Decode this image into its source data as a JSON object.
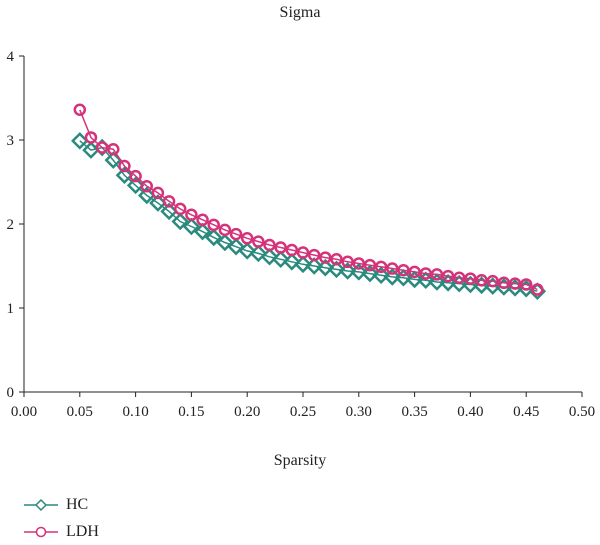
{
  "chart_data": {
    "type": "line",
    "title": "Sigma",
    "xlabel": "Sparsity",
    "ylabel": "",
    "xlim": [
      0,
      0.5
    ],
    "ylim": [
      0,
      4
    ],
    "x_ticks": [
      "0.00",
      "0.05",
      "0.10",
      "0.15",
      "0.20",
      "0.25",
      "0.30",
      "0.35",
      "0.40",
      "0.45",
      "0.50"
    ],
    "y_ticks": [
      "0",
      "1",
      "2",
      "3",
      "4"
    ],
    "legend_position": "bottom-left",
    "series": [
      {
        "name": "HC",
        "color": "#2a8a7e",
        "marker": "diamond",
        "x": [
          0.05,
          0.06,
          0.07,
          0.08,
          0.09,
          0.1,
          0.11,
          0.12,
          0.13,
          0.14,
          0.15,
          0.16,
          0.17,
          0.18,
          0.19,
          0.2,
          0.21,
          0.22,
          0.23,
          0.24,
          0.25,
          0.26,
          0.27,
          0.28,
          0.29,
          0.3,
          0.31,
          0.32,
          0.33,
          0.34,
          0.35,
          0.36,
          0.37,
          0.38,
          0.39,
          0.4,
          0.41,
          0.42,
          0.43,
          0.44,
          0.45,
          0.46
        ],
        "y": [
          2.99,
          2.88,
          2.91,
          2.76,
          2.58,
          2.46,
          2.34,
          2.25,
          2.15,
          2.03,
          1.97,
          1.91,
          1.84,
          1.78,
          1.73,
          1.68,
          1.65,
          1.61,
          1.58,
          1.55,
          1.52,
          1.5,
          1.48,
          1.46,
          1.44,
          1.43,
          1.41,
          1.39,
          1.37,
          1.36,
          1.34,
          1.33,
          1.31,
          1.3,
          1.29,
          1.28,
          1.27,
          1.26,
          1.25,
          1.24,
          1.23,
          1.2
        ]
      },
      {
        "name": "LDH",
        "color": "#d6327a",
        "marker": "circle",
        "x": [
          0.05,
          0.06,
          0.07,
          0.08,
          0.09,
          0.1,
          0.11,
          0.12,
          0.13,
          0.14,
          0.15,
          0.16,
          0.17,
          0.18,
          0.19,
          0.2,
          0.21,
          0.22,
          0.23,
          0.24,
          0.25,
          0.26,
          0.27,
          0.28,
          0.29,
          0.3,
          0.31,
          0.32,
          0.33,
          0.34,
          0.35,
          0.36,
          0.37,
          0.38,
          0.39,
          0.4,
          0.41,
          0.42,
          0.43,
          0.44,
          0.45,
          0.46
        ],
        "y": [
          3.36,
          3.03,
          2.91,
          2.89,
          2.69,
          2.57,
          2.45,
          2.37,
          2.27,
          2.18,
          2.11,
          2.05,
          1.99,
          1.93,
          1.88,
          1.83,
          1.79,
          1.75,
          1.72,
          1.69,
          1.66,
          1.63,
          1.6,
          1.58,
          1.55,
          1.53,
          1.51,
          1.49,
          1.47,
          1.45,
          1.43,
          1.41,
          1.4,
          1.38,
          1.36,
          1.35,
          1.33,
          1.32,
          1.3,
          1.29,
          1.28,
          1.22
        ]
      }
    ]
  }
}
